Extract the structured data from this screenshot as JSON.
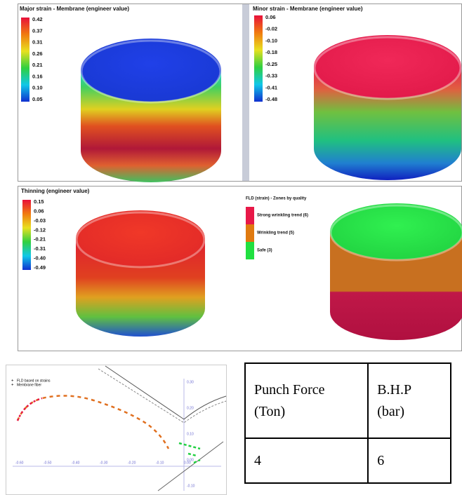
{
  "panels": [
    {
      "title": "Major strain - Membrane (engineer value)",
      "legend": [
        "0.42",
        "0.37",
        "0.31",
        "0.26",
        "0.21",
        "0.16",
        "0.10",
        "0.05"
      ]
    },
    {
      "title": "Minor strain - Membrane (engineer value)",
      "legend": [
        "0.06",
        "-0.02",
        "-0.10",
        "-0.18",
        "-0.25",
        "-0.33",
        "-0.41",
        "-0.48"
      ]
    },
    {
      "title": "Thinning (engineer value)",
      "legend": [
        "0.15",
        "0.06",
        "-0.03",
        "-0.12",
        "-0.21",
        "-0.31",
        "-0.40",
        "-0.49"
      ]
    }
  ],
  "fld_zones": {
    "title": "FLD (strain) - Zones by quality",
    "items": [
      "Strong wrinkling trend (6)",
      "Wrinkling trend (5)",
      "Safe (3)"
    ]
  },
  "fld_plot": {
    "legend": [
      "FLD based on strains",
      "Membrane fiber"
    ],
    "xticks": [
      "-0.60",
      "-0.50",
      "-0.40",
      "-0.30",
      "-0.20",
      "-0.10",
      "0.00"
    ],
    "yticks": [
      "0.30",
      "0.20",
      "0.10",
      "0.00",
      "-0.10"
    ]
  },
  "table": {
    "headers": [
      "Punch Force (Ton)",
      "B.H.P (bar)"
    ],
    "rows": [
      [
        "4",
        "6"
      ]
    ]
  }
}
